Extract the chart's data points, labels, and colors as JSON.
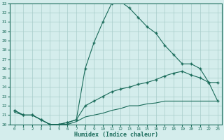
{
  "xlabel": "Humidex (Indice chaleur)",
  "background_color": "#d4edec",
  "grid_color": "#a8ccca",
  "line_color": "#1a6b5a",
  "xlim": [
    -0.5,
    23.5
  ],
  "ylim": [
    20,
    33
  ],
  "xticks": [
    0,
    1,
    2,
    3,
    4,
    5,
    6,
    7,
    8,
    9,
    10,
    11,
    12,
    13,
    14,
    15,
    16,
    17,
    18,
    19,
    20,
    21,
    22,
    23
  ],
  "yticks": [
    20,
    21,
    22,
    23,
    24,
    25,
    26,
    27,
    28,
    29,
    30,
    31,
    32,
    33
  ],
  "curve1_x": [
    0,
    1,
    2,
    3,
    4,
    5,
    6,
    7,
    8,
    9,
    10,
    11,
    12,
    13,
    14,
    15,
    16,
    17,
    18,
    19,
    20,
    21,
    22,
    23
  ],
  "curve1_y": [
    21.5,
    21.0,
    21.0,
    20.5,
    20.0,
    20.0,
    20.2,
    20.5,
    26.0,
    28.8,
    31.0,
    33.0,
    33.2,
    32.5,
    31.5,
    30.5,
    29.8,
    28.5,
    27.5,
    26.5,
    26.5,
    26.0,
    24.5,
    24.5
  ],
  "curve2_x": [
    0,
    1,
    2,
    3,
    4,
    5,
    6,
    7,
    8,
    9,
    10,
    11,
    12,
    13,
    14,
    15,
    16,
    17,
    18,
    19,
    20,
    21,
    22,
    23
  ],
  "curve2_y": [
    21.5,
    21.0,
    21.0,
    20.5,
    20.0,
    20.0,
    20.2,
    20.5,
    22.0,
    22.5,
    23.0,
    23.5,
    23.8,
    24.0,
    24.3,
    24.5,
    24.8,
    25.2,
    25.5,
    25.7,
    25.3,
    25.0,
    24.5,
    22.5
  ],
  "curve3_x": [
    0,
    1,
    2,
    3,
    4,
    5,
    6,
    7,
    8,
    9,
    10,
    11,
    12,
    13,
    14,
    15,
    16,
    17,
    18,
    19,
    20,
    21,
    22,
    23
  ],
  "curve3_y": [
    21.3,
    21.0,
    21.0,
    20.5,
    20.0,
    20.0,
    20.0,
    20.3,
    20.8,
    21.0,
    21.2,
    21.5,
    21.7,
    22.0,
    22.0,
    22.2,
    22.3,
    22.5,
    22.5,
    22.5,
    22.5,
    22.5,
    22.5,
    22.5
  ]
}
